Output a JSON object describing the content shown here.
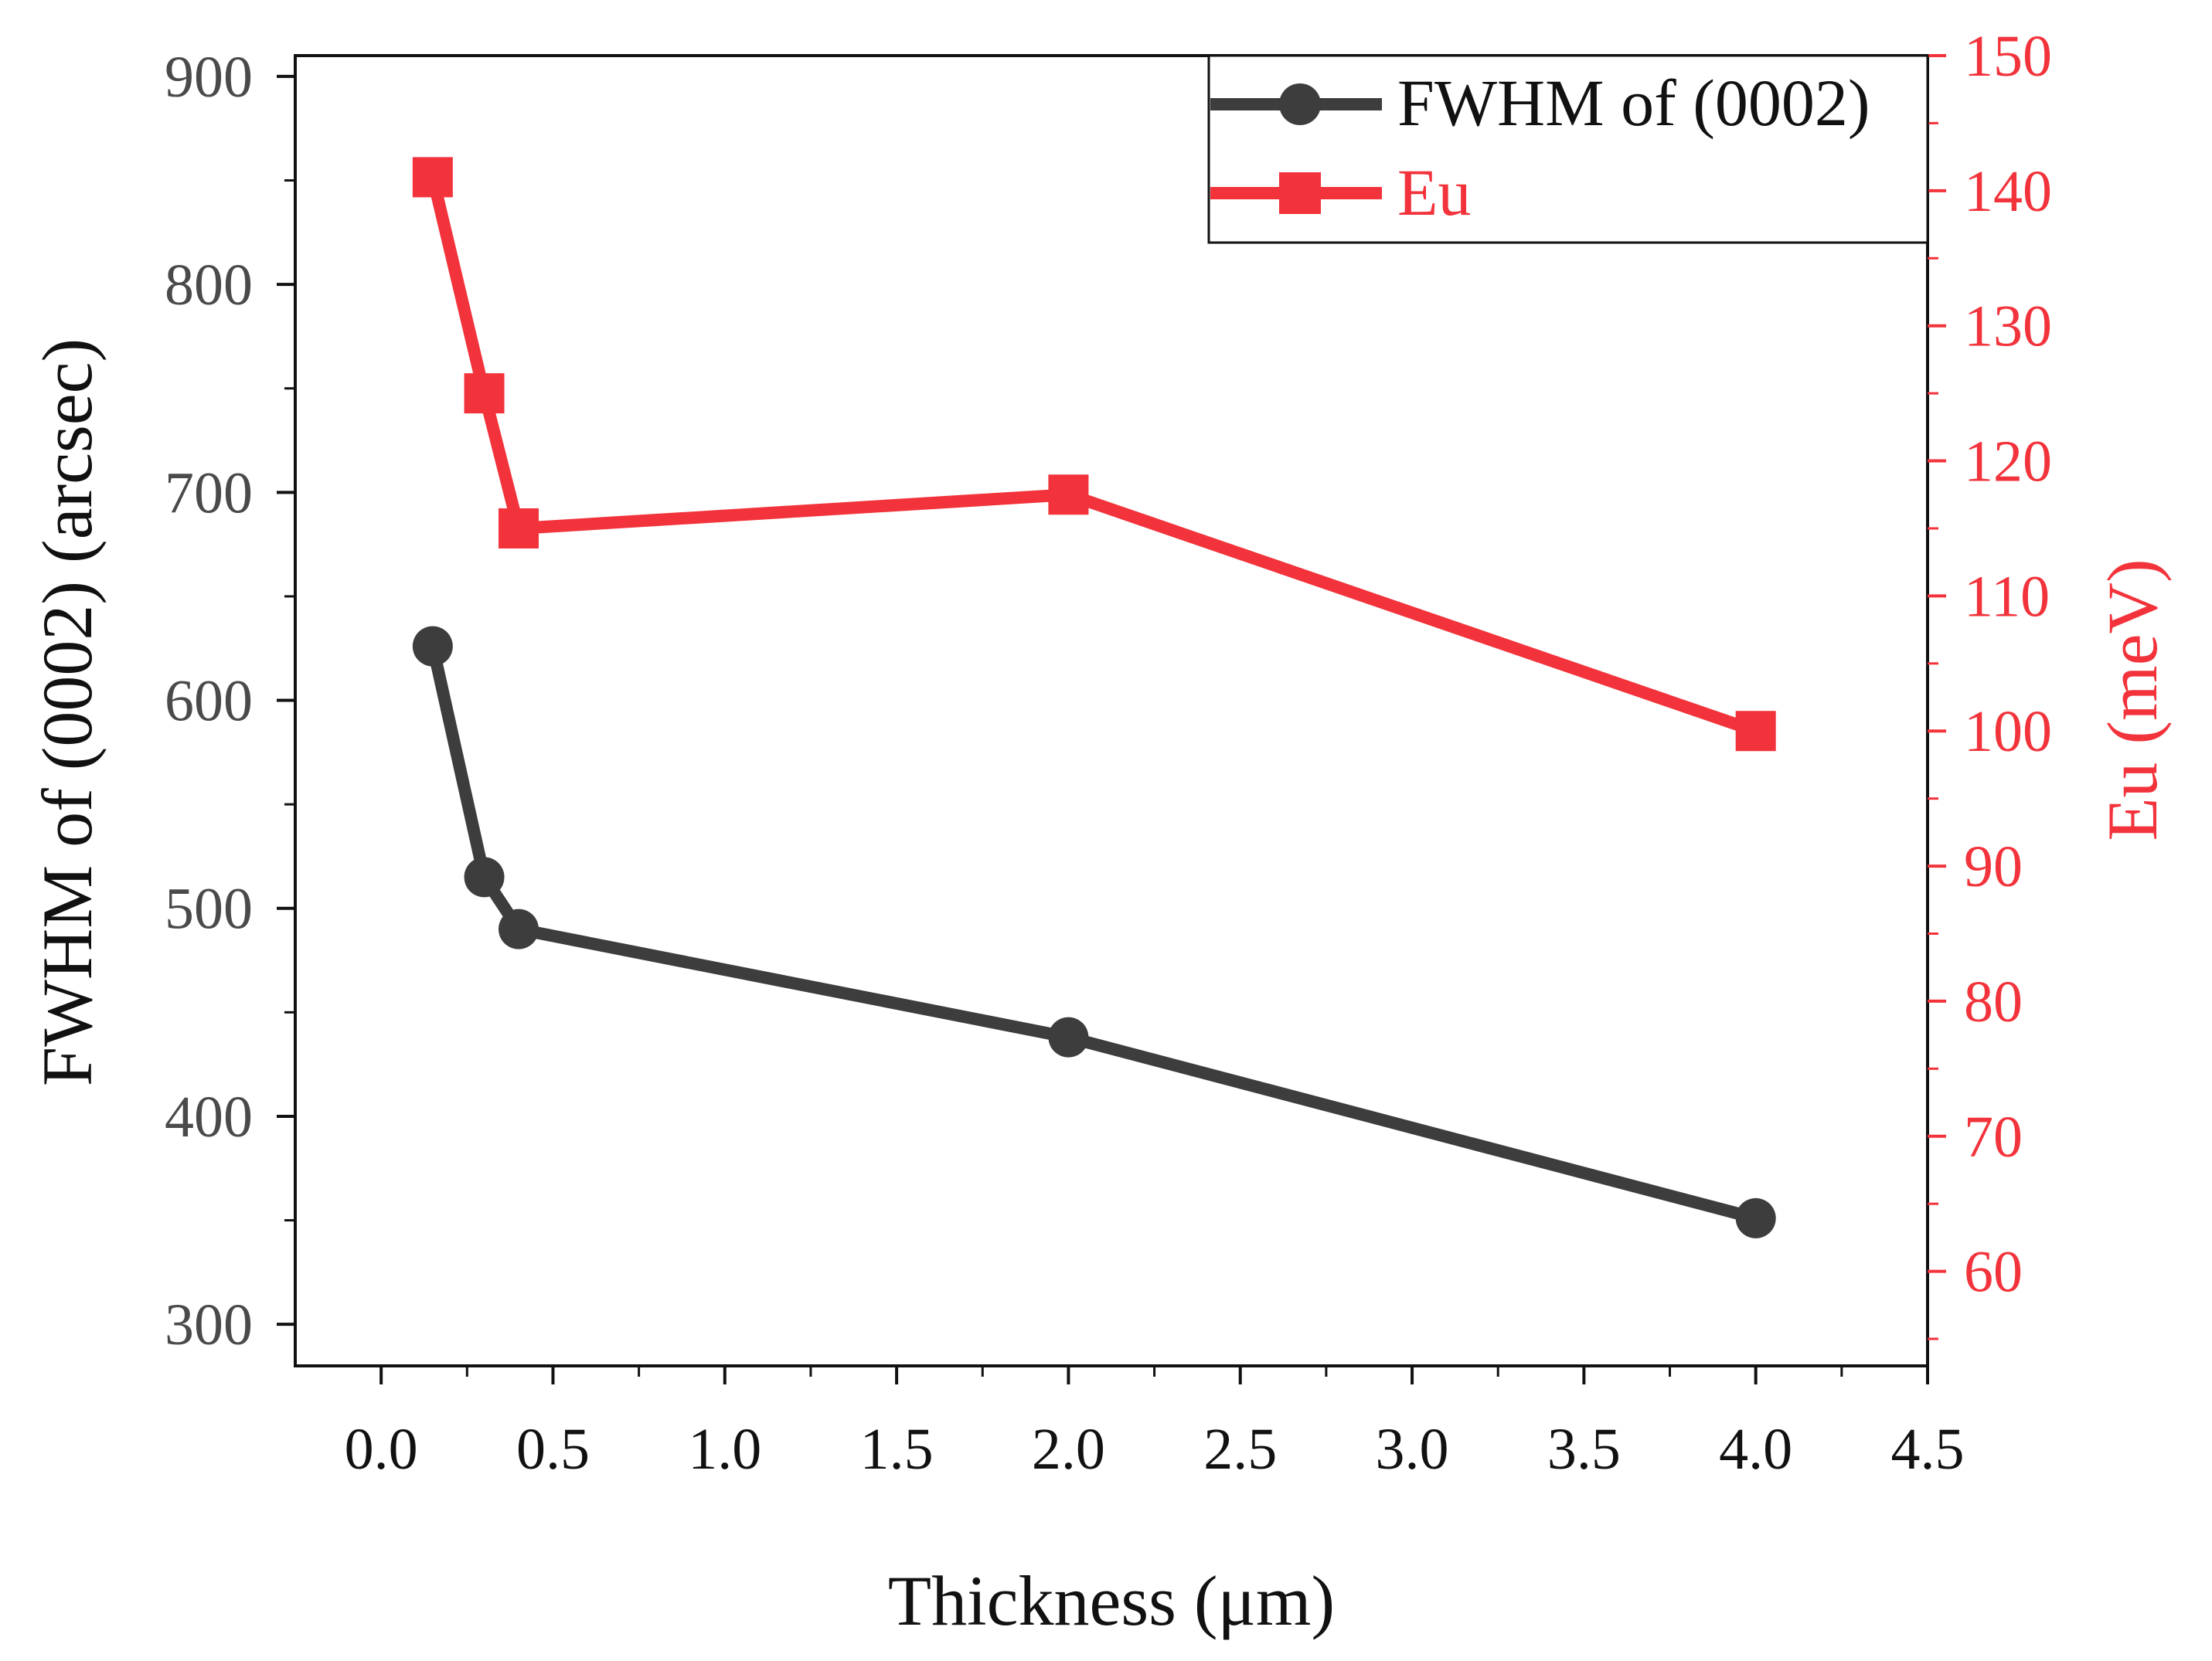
{
  "chart_data": {
    "type": "line",
    "xlabel": "Thickness (μm)",
    "ylabel_left": "FWHM of (0002) (arcsec)",
    "ylabel_right": "Eu (meV)",
    "xlim": [
      -0.25,
      4.5
    ],
    "ylim_left": [
      280,
      910
    ],
    "ylim_right": [
      53,
      150
    ],
    "x_ticks": [
      "0.0",
      "0.5",
      "1.0",
      "1.5",
      "2.0",
      "2.5",
      "3.0",
      "3.5",
      "4.0",
      "4.5"
    ],
    "y_left_ticks": [
      "300",
      "400",
      "500",
      "600",
      "700",
      "800",
      "900"
    ],
    "y_right_ticks": [
      "60",
      "70",
      "80",
      "90",
      "100",
      "110",
      "120",
      "130",
      "140",
      "150"
    ],
    "legend_position": "top-right",
    "grid": false,
    "series": [
      {
        "name": "FWHM of (0002)",
        "axis": "left",
        "color": "#3d3d3d",
        "marker": "circle",
        "x": [
          0.15,
          0.3,
          0.4,
          2.0,
          4.0
        ],
        "y": [
          626,
          515,
          490,
          438,
          351
        ]
      },
      {
        "name": "Eu",
        "axis": "right",
        "color": "#f2333b",
        "marker": "square",
        "x": [
          0.15,
          0.3,
          0.4,
          2.0,
          4.0
        ],
        "y": [
          141,
          125,
          115,
          117.5,
          100
        ]
      }
    ]
  }
}
